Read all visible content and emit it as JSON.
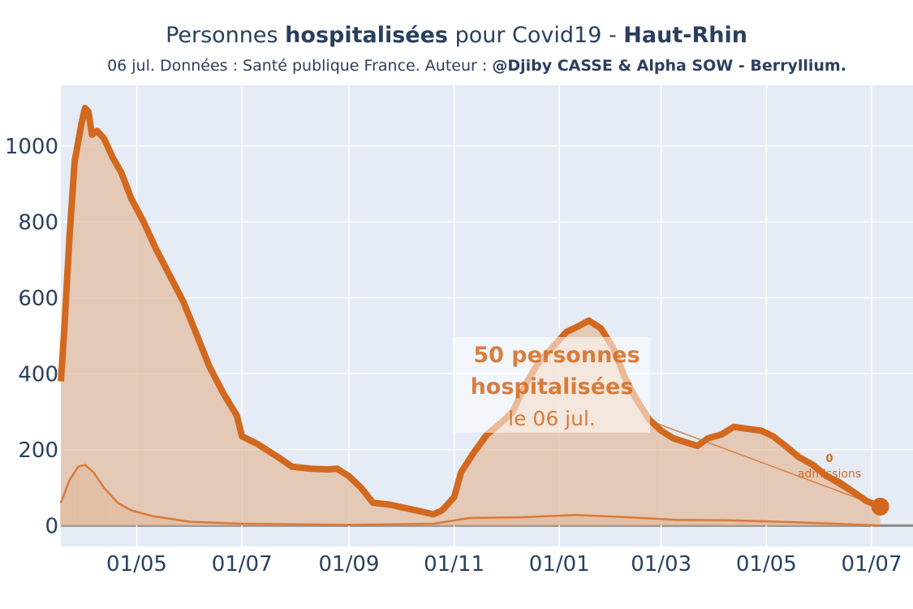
{
  "title": {
    "prefix": "Personnes ",
    "bold1": "hospitalisées",
    "middle": " pour Covid19 - ",
    "bold2": "Haut-Rhin"
  },
  "subtitle": {
    "text": "06 jul. Données : Santé publique France. Auteur : ",
    "bold": "@Djiby CASSE & Alpha SOW - Berryllium."
  },
  "annotation": {
    "line1": "50 personnes",
    "line2": "hospitalisées",
    "line3": "le 06 jul.",
    "admissions_value": "0",
    "admissions_label": "admissions"
  },
  "colors": {
    "plot_bg": "#e5ecf6",
    "main_line": "#d2691e",
    "fill": "#e3bda0",
    "secondary_line": "#d97a3a",
    "bars": "#d9955e",
    "text": "#2a3f5f",
    "annotation_text": "#d2691e"
  },
  "chart_data": {
    "type": "line",
    "x_axis": {
      "type": "date",
      "range": [
        "2020-03-18",
        "2021-07-25"
      ],
      "tick_labels": [
        "01/05",
        "01/07",
        "01/09",
        "01/11",
        "01/01",
        "01/03",
        "01/05",
        "01/07"
      ],
      "tick_dates": [
        "2020-05-01",
        "2020-07-01",
        "2020-09-01",
        "2020-11-01",
        "2021-01-01",
        "2021-03-01",
        "2021-05-01",
        "2021-07-01"
      ]
    },
    "y_axis": {
      "range": [
        -55,
        1160
      ],
      "tick_values": [
        0,
        200,
        400,
        600,
        800,
        1000
      ],
      "tick_labels": [
        "0",
        "200",
        "400",
        "600",
        "800",
        "1000"
      ]
    },
    "grid": true,
    "series": [
      {
        "role": "hospitalisations",
        "points": [
          [
            "2020-03-18",
            380
          ],
          [
            "2020-03-20",
            520
          ],
          [
            "2020-03-23",
            760
          ],
          [
            "2020-03-26",
            960
          ],
          [
            "2020-03-30",
            1060
          ],
          [
            "2020-04-01",
            1100
          ],
          [
            "2020-04-03",
            1090
          ],
          [
            "2020-04-05",
            1030
          ],
          [
            "2020-04-08",
            1040
          ],
          [
            "2020-04-12",
            1020
          ],
          [
            "2020-04-17",
            970
          ],
          [
            "2020-04-22",
            930
          ],
          [
            "2020-04-28",
            860
          ],
          [
            "2020-05-05",
            800
          ],
          [
            "2020-05-12",
            730
          ],
          [
            "2020-05-20",
            660
          ],
          [
            "2020-05-28",
            590
          ],
          [
            "2020-06-05",
            500
          ],
          [
            "2020-06-12",
            420
          ],
          [
            "2020-06-20",
            350
          ],
          [
            "2020-06-28",
            290
          ],
          [
            "2020-07-01",
            235
          ],
          [
            "2020-07-10",
            215
          ],
          [
            "2020-07-22",
            180
          ],
          [
            "2020-07-30",
            155
          ],
          [
            "2020-08-10",
            150
          ],
          [
            "2020-08-20",
            148
          ],
          [
            "2020-08-25",
            150
          ],
          [
            "2020-09-01",
            130
          ],
          [
            "2020-09-08",
            100
          ],
          [
            "2020-09-15",
            60
          ],
          [
            "2020-09-25",
            55
          ],
          [
            "2020-10-05",
            45
          ],
          [
            "2020-10-12",
            38
          ],
          [
            "2020-10-20",
            30
          ],
          [
            "2020-10-25",
            40
          ],
          [
            "2020-11-01",
            75
          ],
          [
            "2020-11-05",
            140
          ],
          [
            "2020-11-12",
            190
          ],
          [
            "2020-11-20",
            240
          ],
          [
            "2020-11-28",
            270
          ],
          [
            "2020-12-05",
            300
          ],
          [
            "2020-12-12",
            370
          ],
          [
            "2020-12-20",
            430
          ],
          [
            "2020-12-28",
            470
          ],
          [
            "2021-01-05",
            510
          ],
          [
            "2021-01-12",
            525
          ],
          [
            "2021-01-18",
            540
          ],
          [
            "2021-01-25",
            520
          ],
          [
            "2021-02-01",
            470
          ],
          [
            "2021-02-08",
            390
          ],
          [
            "2021-02-15",
            330
          ],
          [
            "2021-02-22",
            280
          ],
          [
            "2021-03-01",
            250
          ],
          [
            "2021-03-08",
            230
          ],
          [
            "2021-03-15",
            220
          ],
          [
            "2021-03-22",
            210
          ],
          [
            "2021-03-28",
            230
          ],
          [
            "2021-04-05",
            240
          ],
          [
            "2021-04-12",
            260
          ],
          [
            "2021-04-20",
            255
          ],
          [
            "2021-04-28",
            250
          ],
          [
            "2021-05-05",
            235
          ],
          [
            "2021-05-12",
            210
          ],
          [
            "2021-05-20",
            180
          ],
          [
            "2021-05-28",
            160
          ],
          [
            "2021-06-05",
            130
          ],
          [
            "2021-06-12",
            115
          ],
          [
            "2021-06-20",
            90
          ],
          [
            "2021-06-28",
            65
          ],
          [
            "2021-07-06",
            50
          ]
        ]
      },
      {
        "role": "admissions",
        "points": [
          [
            "2020-03-18",
            60
          ],
          [
            "2020-03-23",
            120
          ],
          [
            "2020-03-28",
            155
          ],
          [
            "2020-04-01",
            160
          ],
          [
            "2020-04-06",
            140
          ],
          [
            "2020-04-12",
            100
          ],
          [
            "2020-04-20",
            60
          ],
          [
            "2020-04-28",
            40
          ],
          [
            "2020-05-10",
            25
          ],
          [
            "2020-06-01",
            10
          ],
          [
            "2020-07-01",
            5
          ],
          [
            "2020-09-01",
            2
          ],
          [
            "2020-10-20",
            5
          ],
          [
            "2020-11-10",
            20
          ],
          [
            "2020-12-10",
            22
          ],
          [
            "2021-01-10",
            28
          ],
          [
            "2021-02-10",
            22
          ],
          [
            "2021-03-10",
            15
          ],
          [
            "2021-04-10",
            14
          ],
          [
            "2021-05-10",
            10
          ],
          [
            "2021-06-10",
            5
          ],
          [
            "2021-07-06",
            0
          ]
        ]
      }
    ],
    "latest_point": {
      "date": "2021-07-06",
      "value": 50
    }
  }
}
